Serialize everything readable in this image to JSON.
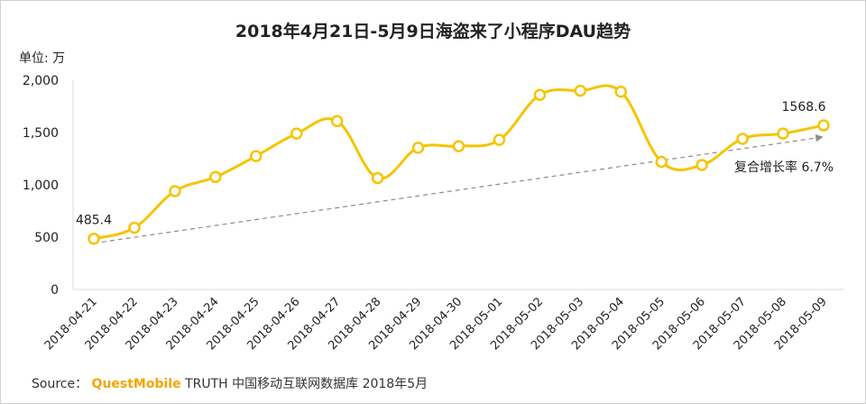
{
  "chart_data": {
    "type": "line",
    "title": "2018年4月21日-5月9日海盗来了小程序DAU趋势",
    "ylabel": "单位: 万",
    "ylim": [
      0,
      2000
    ],
    "yticks": [
      "0",
      "500",
      "1,000",
      "1,500",
      "2,000"
    ],
    "yticks_values": [
      0,
      500,
      1000,
      1500,
      2000
    ],
    "grid": false,
    "categories": [
      "2018-04-21",
      "2018-04-22",
      "2018-04-23",
      "2018-04-24",
      "2018-04-25",
      "2018-04-26",
      "2018-04-27",
      "2018-04-28",
      "2018-04-29",
      "2018-04-30",
      "2018-05-01",
      "2018-05-02",
      "2018-05-03",
      "2018-05-04",
      "2018-05-05",
      "2018-05-06",
      "2018-05-07",
      "2018-05-08",
      "2018-05-09"
    ],
    "series": [
      {
        "color": "#f5c400",
        "values": [
          485.4,
          590,
          940,
          1075,
          1275,
          1490,
          1610,
          1065,
          1355,
          1370,
          1430,
          1860,
          1900,
          1890,
          1220,
          1190,
          1440,
          1490,
          1568.6
        ]
      }
    ],
    "data_labels": [
      {
        "index": 0,
        "text": "485.4"
      },
      {
        "index": 18,
        "text": "1568.6"
      }
    ],
    "trend_line": {
      "from_index": 0,
      "to_index": 18,
      "color": "#8c8c8c",
      "label": "复合增长率 6.7%"
    }
  },
  "source": {
    "prefix": "Source：",
    "brand": "QuestMobile",
    "rest": "TRUTH 中国移动互联网数据库 2018年5月"
  }
}
